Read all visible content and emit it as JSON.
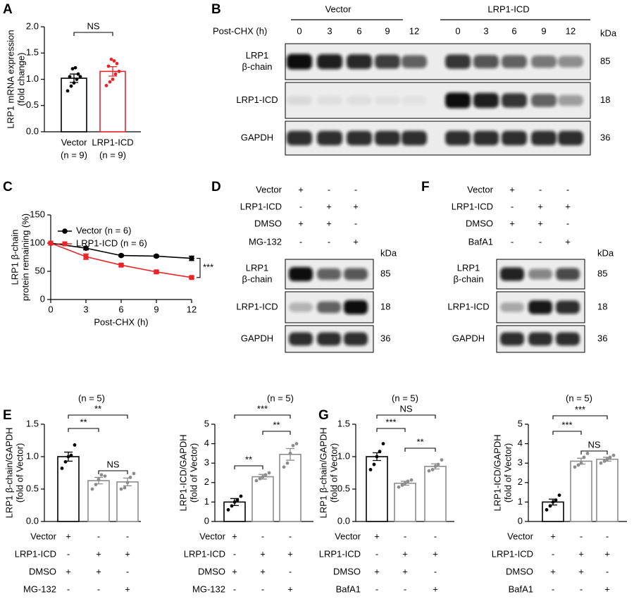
{
  "panel_labels": [
    "A",
    "B",
    "C",
    "D",
    "E",
    "F",
    "G"
  ],
  "chart_data": [
    {
      "type": "bar",
      "ylabel": [
        "LRP1 mRNA expression",
        "(fold change)"
      ],
      "categories": [
        "Vector",
        "LRP1-ICD"
      ],
      "category_notes": [
        "(n = 9)",
        "(n = 9)"
      ],
      "values": [
        1.02,
        1.15
      ],
      "errors": [
        0.08,
        0.09
      ],
      "points": [
        [
          0.78,
          0.87,
          0.93,
          1.0,
          1.05,
          1.05,
          1.1,
          1.2,
          1.22
        ],
        [
          0.88,
          0.95,
          1.0,
          1.1,
          1.15,
          1.25,
          1.3,
          1.38,
          1.35
        ]
      ],
      "colors": [
        "#000000",
        "#e8262a"
      ],
      "ylim": [
        0,
        2
      ],
      "yticks": [
        {
          "value": 0,
          "label": "0.0"
        },
        0.5,
        {
          "value": 1,
          "label": "1.0"
        },
        1.5,
        {
          "value": 2,
          "label": "2.0"
        }
      ],
      "annotations": [
        "NS"
      ]
    },
    {
      "type": "line",
      "ylabel": [
        "LRP1 β-chain",
        "protein remaining (%)"
      ],
      "xlabel": "Post-CHX (h)",
      "x": [
        0,
        3,
        6,
        9,
        12
      ],
      "xlim": [
        0,
        12
      ],
      "xticks": [
        0,
        3,
        6,
        9,
        12
      ],
      "ylim": [
        0,
        150
      ],
      "yticks": [
        0,
        50,
        100,
        150
      ],
      "legend": "top",
      "series": [
        {
          "name": "Vector (n = 6)",
          "color": "#000000",
          "marker": "circle",
          "values": [
            100,
            91,
            78,
            77,
            73
          ],
          "errors": [
            0,
            3,
            2,
            2,
            4
          ]
        },
        {
          "name": "LRP1-ICD (n = 6)",
          "color": "#e8262a",
          "marker": "square",
          "values": [
            100,
            76,
            61,
            49,
            39
          ],
          "errors": [
            0,
            5,
            2,
            2,
            2
          ]
        }
      ],
      "annotations": [
        "***"
      ]
    },
    {
      "type": "bar",
      "title": "(n = 5)",
      "ylabel": [
        "LRP1 β-chain/GAPDH",
        "(fold of Vector)"
      ],
      "values": [
        1.0,
        0.63,
        0.61
      ],
      "errors": [
        0.07,
        0.05,
        0.06
      ],
      "points": [
        [
          0.82,
          0.92,
          1.0,
          1.02,
          1.18
        ],
        [
          0.5,
          0.57,
          0.65,
          0.72,
          0.7
        ],
        [
          0.5,
          0.52,
          0.6,
          0.68,
          0.74
        ]
      ],
      "colors": [
        "#000000",
        "#8c8c8c",
        "#8c8c8c"
      ],
      "ylim": [
        0,
        1.5
      ],
      "yticks": [
        {
          "value": 0,
          "label": "0.0"
        },
        0.5,
        {
          "value": 1,
          "label": "1.0"
        },
        1.5
      ],
      "annotations": [
        "**",
        "**",
        "NS"
      ],
      "conditions": [
        {
          "label": "Vector",
          "signs": [
            "+",
            "-",
            "-"
          ]
        },
        {
          "label": "LRP1-ICD",
          "signs": [
            "-",
            "+",
            "+"
          ]
        },
        {
          "label": "DMSO",
          "signs": [
            "+",
            "+",
            "-"
          ]
        },
        {
          "label": "MG-132",
          "signs": [
            "-",
            "-",
            "+"
          ]
        }
      ]
    },
    {
      "type": "bar",
      "title": "(n = 5)",
      "ylabel": [
        "LRP1-ICD/GAPDH",
        "(fold of Vector)"
      ],
      "values": [
        1.0,
        2.3,
        3.45
      ],
      "errors": [
        0.18,
        0.12,
        0.3
      ],
      "points": [
        [
          0.6,
          0.8,
          1.0,
          1.1,
          1.3
        ],
        [
          2.1,
          2.2,
          2.3,
          2.4,
          2.5
        ],
        [
          2.8,
          3.0,
          3.5,
          3.9,
          4.0
        ]
      ],
      "colors": [
        "#000000",
        "#8c8c8c",
        "#8c8c8c"
      ],
      "ylim": [
        0,
        5
      ],
      "yticks": [
        0,
        1,
        2,
        3,
        4,
        5
      ],
      "annotations": [
        "**",
        "***",
        "**"
      ],
      "conditions": [
        {
          "label": "Vector",
          "signs": [
            "+",
            "-",
            "-"
          ]
        },
        {
          "label": "LRP1-ICD",
          "signs": [
            "-",
            "+",
            "+"
          ]
        },
        {
          "label": "DMSO",
          "signs": [
            "+",
            "+",
            "-"
          ]
        },
        {
          "label": "MG-132",
          "signs": [
            "-",
            "-",
            "+"
          ]
        }
      ]
    },
    {
      "type": "bar",
      "title": "(n = 5)",
      "ylabel": [
        "LRP1 β-chain/GAPDH",
        "(fold of Vector)"
      ],
      "values": [
        1.0,
        0.59,
        0.85
      ],
      "errors": [
        0.06,
        0.03,
        0.04
      ],
      "points": [
        [
          0.8,
          0.88,
          1.0,
          1.08,
          1.2
        ],
        [
          0.53,
          0.56,
          0.59,
          0.62,
          0.64
        ],
        [
          0.78,
          0.8,
          0.85,
          0.88,
          0.95
        ]
      ],
      "colors": [
        "#000000",
        "#8c8c8c",
        "#8c8c8c"
      ],
      "ylim": [
        0,
        1.5
      ],
      "yticks": [
        {
          "value": 0,
          "label": "0.0"
        },
        0.5,
        {
          "value": 1,
          "label": "1.0"
        },
        1.5
      ],
      "annotations": [
        "***",
        "NS",
        "**"
      ],
      "conditions": [
        {
          "label": "Vector",
          "signs": [
            "+",
            "-",
            "-"
          ]
        },
        {
          "label": "LRP1-ICD",
          "signs": [
            "-",
            "+",
            "+"
          ]
        },
        {
          "label": "DMSO",
          "signs": [
            "+",
            "+",
            "-"
          ]
        },
        {
          "label": "BafA1",
          "signs": [
            "-",
            "-",
            "+"
          ]
        }
      ]
    },
    {
      "type": "bar",
      "title": "(n = 5)",
      "ylabel": [
        "LRP1-ICD/GAPDH",
        "(fold of Vector)"
      ],
      "values": [
        1.0,
        3.1,
        3.2
      ],
      "errors": [
        0.15,
        0.15,
        0.1
      ],
      "points": [
        [
          0.6,
          0.8,
          1.0,
          1.1,
          1.35
        ],
        [
          2.8,
          2.9,
          3.0,
          3.3,
          3.5
        ],
        [
          3.0,
          3.1,
          3.2,
          3.3,
          3.4
        ]
      ],
      "colors": [
        "#000000",
        "#8c8c8c",
        "#8c8c8c"
      ],
      "ylim": [
        0,
        5
      ],
      "yticks": [
        0,
        1,
        2,
        3,
        4,
        5
      ],
      "annotations": [
        "***",
        "***",
        "NS"
      ],
      "conditions": [
        {
          "label": "Vector",
          "signs": [
            "+",
            "-",
            "-"
          ]
        },
        {
          "label": "LRP1-ICD",
          "signs": [
            "-",
            "+",
            "+"
          ]
        },
        {
          "label": "DMSO",
          "signs": [
            "+",
            "+",
            "-"
          ]
        },
        {
          "label": "BafA1",
          "signs": [
            "-",
            "-",
            "+"
          ]
        }
      ]
    }
  ],
  "blots": [
    {
      "groups": [
        "Vector",
        "LRP1-ICD"
      ],
      "lane_label": "Post-CHX (h)",
      "lanes": [
        0,
        3,
        6,
        9,
        12,
        0,
        3,
        6,
        9,
        12
      ],
      "kda_label": "kDa",
      "rows": [
        {
          "label": [
            "LRP1",
            "β-chain"
          ],
          "kda": 85
        },
        {
          "label": [
            "LRP1-ICD"
          ],
          "kda": 18
        },
        {
          "label": [
            "GAPDH"
          ],
          "kda": 36
        }
      ]
    },
    {
      "conditions": [
        {
          "label": "Vector",
          "signs": [
            "+",
            "-",
            "-"
          ]
        },
        {
          "label": "LRP1-ICD",
          "signs": [
            "-",
            "+",
            "+"
          ]
        },
        {
          "label": "DMSO",
          "signs": [
            "+",
            "+",
            "-"
          ]
        },
        {
          "label": "MG-132",
          "signs": [
            "-",
            "-",
            "+"
          ]
        }
      ],
      "kda_label": "kDa",
      "rows": [
        {
          "label": [
            "LRP1",
            "β-chain"
          ],
          "kda": 85
        },
        {
          "label": [
            "LRP1-ICD"
          ],
          "kda": 18
        },
        {
          "label": [
            "GAPDH"
          ],
          "kda": 36
        }
      ]
    },
    {
      "conditions": [
        {
          "label": "Vector",
          "signs": [
            "+",
            "-",
            "-"
          ]
        },
        {
          "label": "LRP1-ICD",
          "signs": [
            "-",
            "+",
            "+"
          ]
        },
        {
          "label": "DMSO",
          "signs": [
            "+",
            "+",
            "-"
          ]
        },
        {
          "label": "BafA1",
          "signs": [
            "-",
            "-",
            "+"
          ]
        }
      ],
      "kda_label": "kDa",
      "rows": [
        {
          "label": [
            "LRP1",
            "β-chain"
          ],
          "kda": 85
        },
        {
          "label": [
            "LRP1-ICD"
          ],
          "kda": 18
        },
        {
          "label": [
            "GAPDH"
          ],
          "kda": 36
        }
      ]
    }
  ]
}
